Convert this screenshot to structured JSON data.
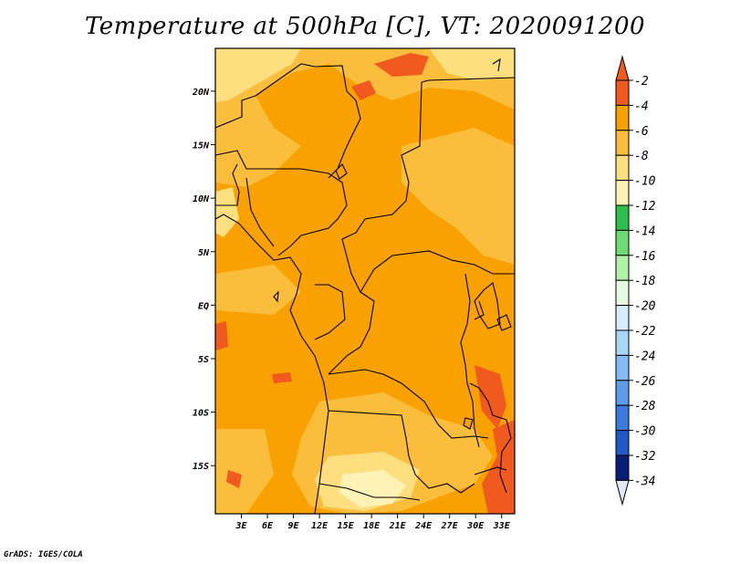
{
  "title": "Temperature at 500hPa [C], VT: 2020091200",
  "credit": "GrADS: IGES/COLA",
  "map": {
    "lon_range": [
      0,
      34.5
    ],
    "lat_range": [
      -19.5,
      24
    ],
    "lat_ticks": [
      "20N",
      "15N",
      "10N",
      "5N",
      "EQ",
      "5S",
      "10S",
      "15S"
    ],
    "lat_values": [
      20,
      15,
      10,
      5,
      0,
      -5,
      -10,
      -15
    ],
    "lon_ticks": [
      "3E",
      "6E",
      "9E",
      "12E",
      "15E",
      "18E",
      "21E",
      "24E",
      "27E",
      "30E",
      "33E"
    ],
    "lon_values": [
      3,
      6,
      9,
      12,
      15,
      18,
      21,
      24,
      27,
      30,
      33
    ],
    "field_colors": {
      "warm_-2": "#F05A1E",
      "-4": "#F9A100",
      "-6": "#FBBE3C",
      "-8": "#FDDF80",
      "-10": "#FFF2B4"
    }
  },
  "colorbar": {
    "labels": [
      "-2",
      "-4",
      "-6",
      "-8",
      "-10",
      "-12",
      "-14",
      "-16",
      "-18",
      "-20",
      "-22",
      "-24",
      "-26",
      "-28",
      "-30",
      "-32",
      "-34"
    ],
    "colors": [
      "#F05A1E",
      "#F9A100",
      "#FBBE3C",
      "#FDDF80",
      "#FFF2B4",
      "#2DBE4B",
      "#6CDC72",
      "#B2F0AA",
      "#E4FAE0",
      "#D6ECFC",
      "#A8D6F7",
      "#82BCF2",
      "#5C9CEA",
      "#3A7ADE",
      "#2258C8",
      "#1438A8",
      "#0A1E78"
    ],
    "top_color": "#F05A1E",
    "bottom_color": "#E6E6FA"
  }
}
